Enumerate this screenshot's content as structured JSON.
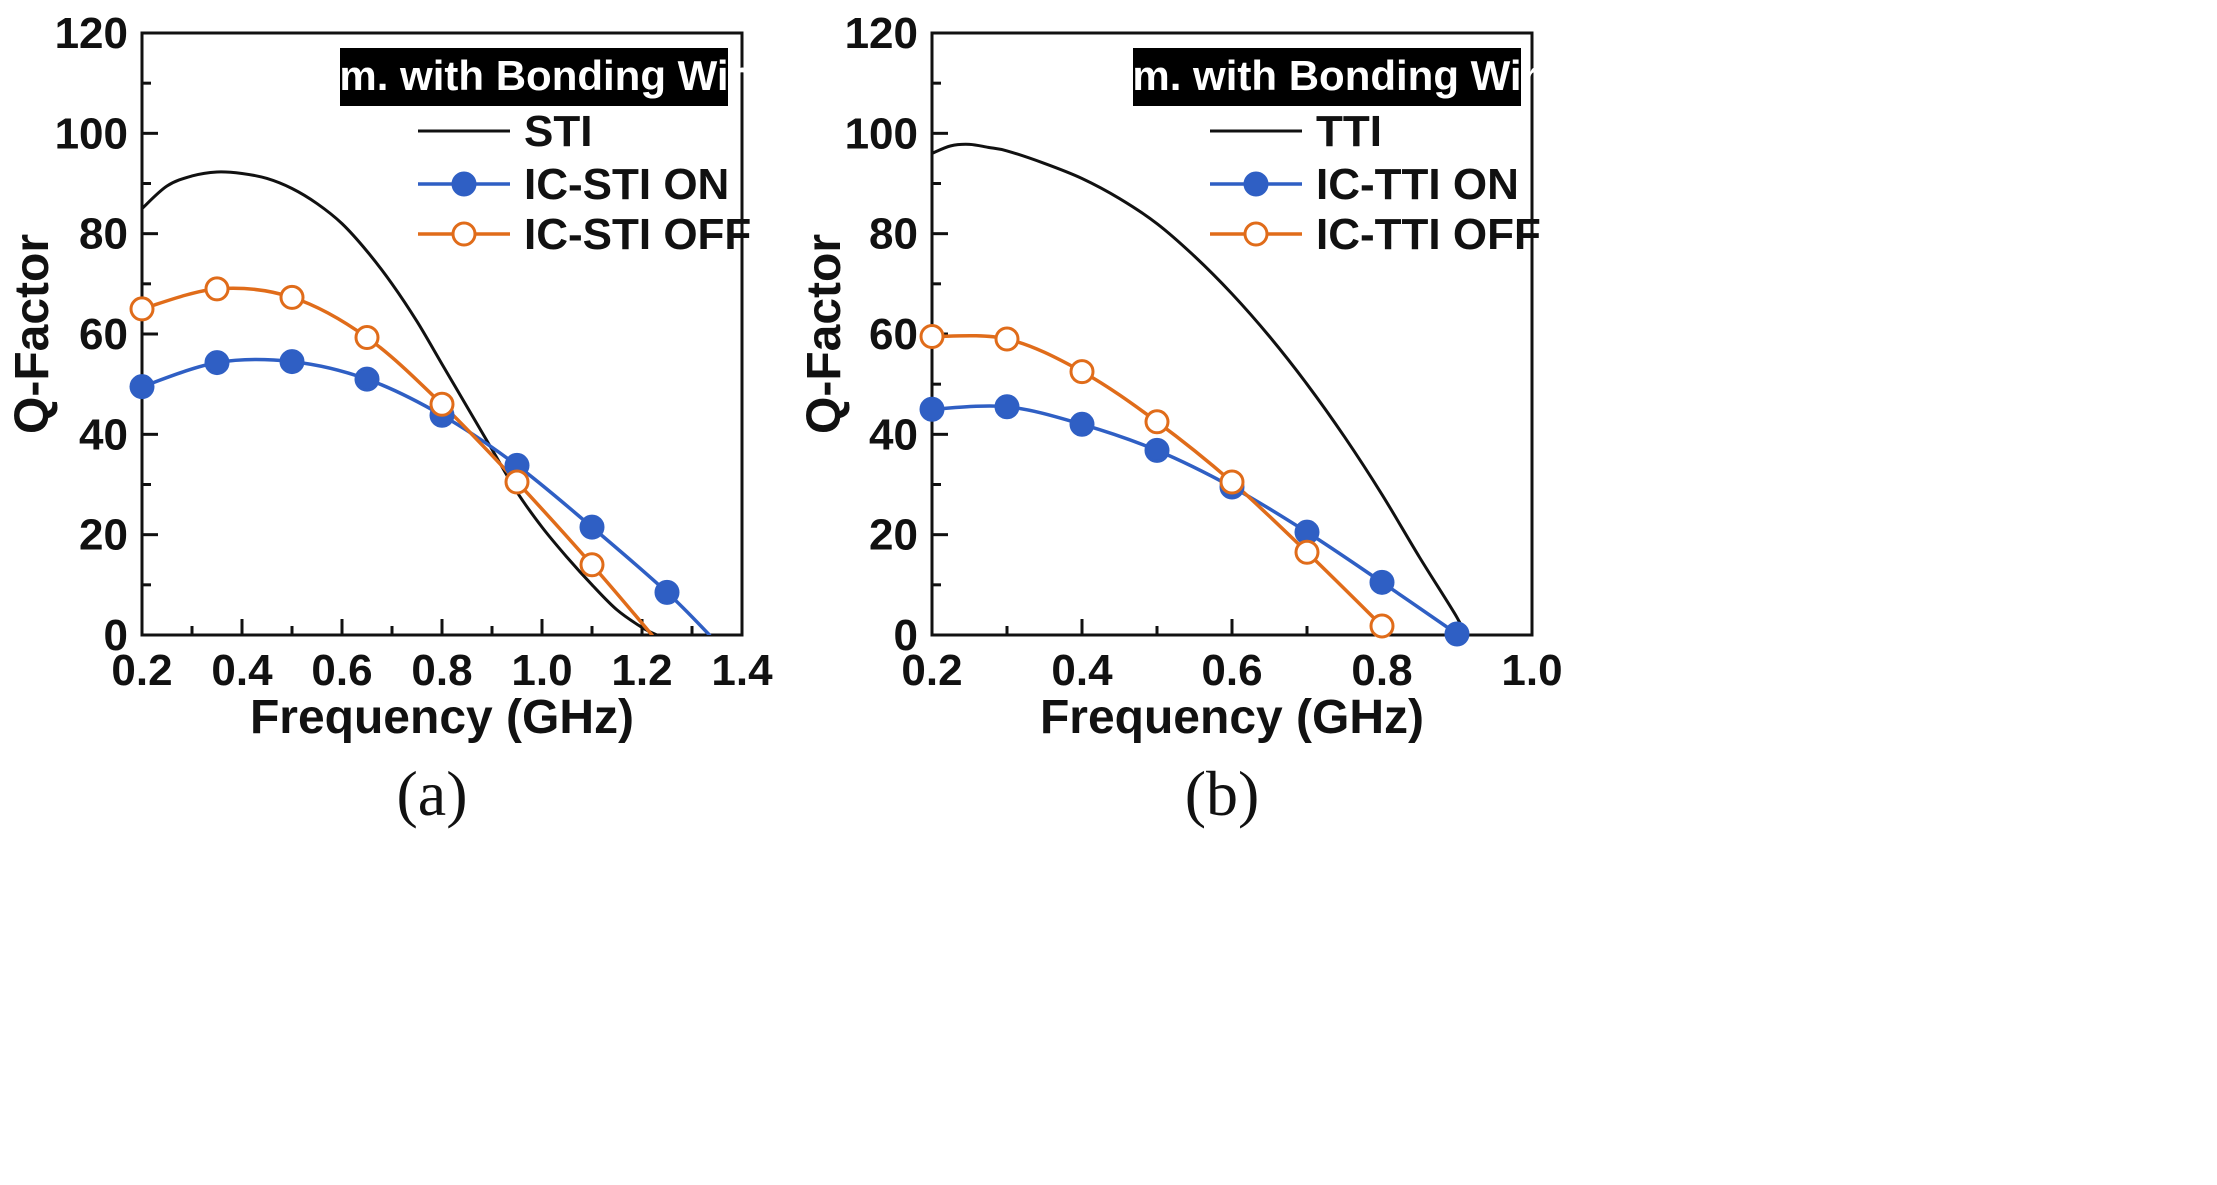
{
  "colors": {
    "black": "#111111",
    "blue": "#2f5fc4",
    "orange": "#e06c1a",
    "box_bg": "#000000",
    "box_text": "#ffffff"
  },
  "chart_data": [
    {
      "type": "line",
      "panel_label": "(a)",
      "box_title": "Sim. with Bonding Wire",
      "xlabel": "Frequency (GHz)",
      "ylabel": "Q-Factor",
      "xlim": [
        0.2,
        1.4
      ],
      "ylim": [
        0,
        120
      ],
      "xticks": [
        0.2,
        0.4,
        0.6,
        0.8,
        1.0,
        1.2,
        1.4
      ],
      "xtick_labels": [
        "0.2",
        "0.4",
        "0.6",
        "0.8",
        "1.0",
        "1.2",
        "1.4"
      ],
      "yticks": [
        0,
        20,
        40,
        60,
        80,
        100,
        120
      ],
      "ytick_labels": [
        "0",
        "20",
        "40",
        "60",
        "80",
        "100",
        "120"
      ],
      "legend_position": "top-right",
      "series": [
        {
          "name": "STI",
          "color_key": "black",
          "marker": "none",
          "x": [
            0.2,
            0.25,
            0.3,
            0.35,
            0.4,
            0.45,
            0.5,
            0.55,
            0.6,
            0.65,
            0.7,
            0.75,
            0.8,
            0.85,
            0.9,
            0.95,
            1.0,
            1.05,
            1.1,
            1.15,
            1.2,
            1.23
          ],
          "y": [
            85,
            89.5,
            91.5,
            92.3,
            92.0,
            91.0,
            89.0,
            86.0,
            82.0,
            76.5,
            70.0,
            62.5,
            54.0,
            45.5,
            37.0,
            28.5,
            21.5,
            15.5,
            10.0,
            5.0,
            1.5,
            0
          ]
        },
        {
          "name": "IC-STI ON",
          "color_key": "blue",
          "marker": "filled",
          "x": [
            0.2,
            0.35,
            0.5,
            0.65,
            0.8,
            0.95,
            1.1,
            1.25,
            1.335
          ],
          "y": [
            49.5,
            54.3,
            54.5,
            51.0,
            43.8,
            33.8,
            21.5,
            8.5,
            0
          ]
        },
        {
          "name": "IC-STI OFF",
          "color_key": "orange",
          "marker": "open",
          "x": [
            0.2,
            0.35,
            0.5,
            0.65,
            0.8,
            0.95,
            1.1,
            1.22
          ],
          "y": [
            65.0,
            69.0,
            67.3,
            59.3,
            46.0,
            30.5,
            14.0,
            0
          ]
        }
      ]
    },
    {
      "type": "line",
      "panel_label": "(b)",
      "box_title": "Sim. with Bonding Wire",
      "xlabel": "Frequency (GHz)",
      "ylabel": "Q-Factor",
      "xlim": [
        0.2,
        1.0
      ],
      "ylim": [
        0,
        120
      ],
      "xticks": [
        0.2,
        0.4,
        0.6,
        0.8,
        1.0
      ],
      "xtick_labels": [
        "0.2",
        "0.4",
        "0.6",
        "0.8",
        "1.0"
      ],
      "yticks": [
        0,
        20,
        40,
        60,
        80,
        100,
        120
      ],
      "ytick_labels": [
        "0",
        "20",
        "40",
        "60",
        "80",
        "100",
        "120"
      ],
      "legend_position": "top-right",
      "series": [
        {
          "name": "TTI",
          "color_key": "black",
          "marker": "none",
          "x": [
            0.2,
            0.225,
            0.25,
            0.275,
            0.3,
            0.35,
            0.4,
            0.45,
            0.5,
            0.55,
            0.6,
            0.65,
            0.7,
            0.75,
            0.8,
            0.85,
            0.9,
            0.91
          ],
          "y": [
            96.0,
            97.5,
            97.8,
            97.2,
            96.5,
            94.0,
            91.0,
            87.0,
            82.0,
            75.5,
            68.0,
            59.5,
            50.0,
            39.5,
            28.0,
            15.5,
            3.5,
            0
          ]
        },
        {
          "name": "IC-TTI ON",
          "color_key": "blue",
          "marker": "filled",
          "x": [
            0.2,
            0.3,
            0.4,
            0.5,
            0.6,
            0.7,
            0.8,
            0.9
          ],
          "y": [
            45.0,
            45.5,
            42.0,
            36.8,
            29.5,
            20.5,
            10.5,
            0.2
          ]
        },
        {
          "name": "IC-TTI OFF",
          "color_key": "orange",
          "marker": "open",
          "x": [
            0.2,
            0.3,
            0.4,
            0.5,
            0.6,
            0.7,
            0.8
          ],
          "y": [
            59.5,
            59.0,
            52.5,
            42.5,
            30.5,
            16.5,
            1.8
          ]
        }
      ]
    }
  ]
}
